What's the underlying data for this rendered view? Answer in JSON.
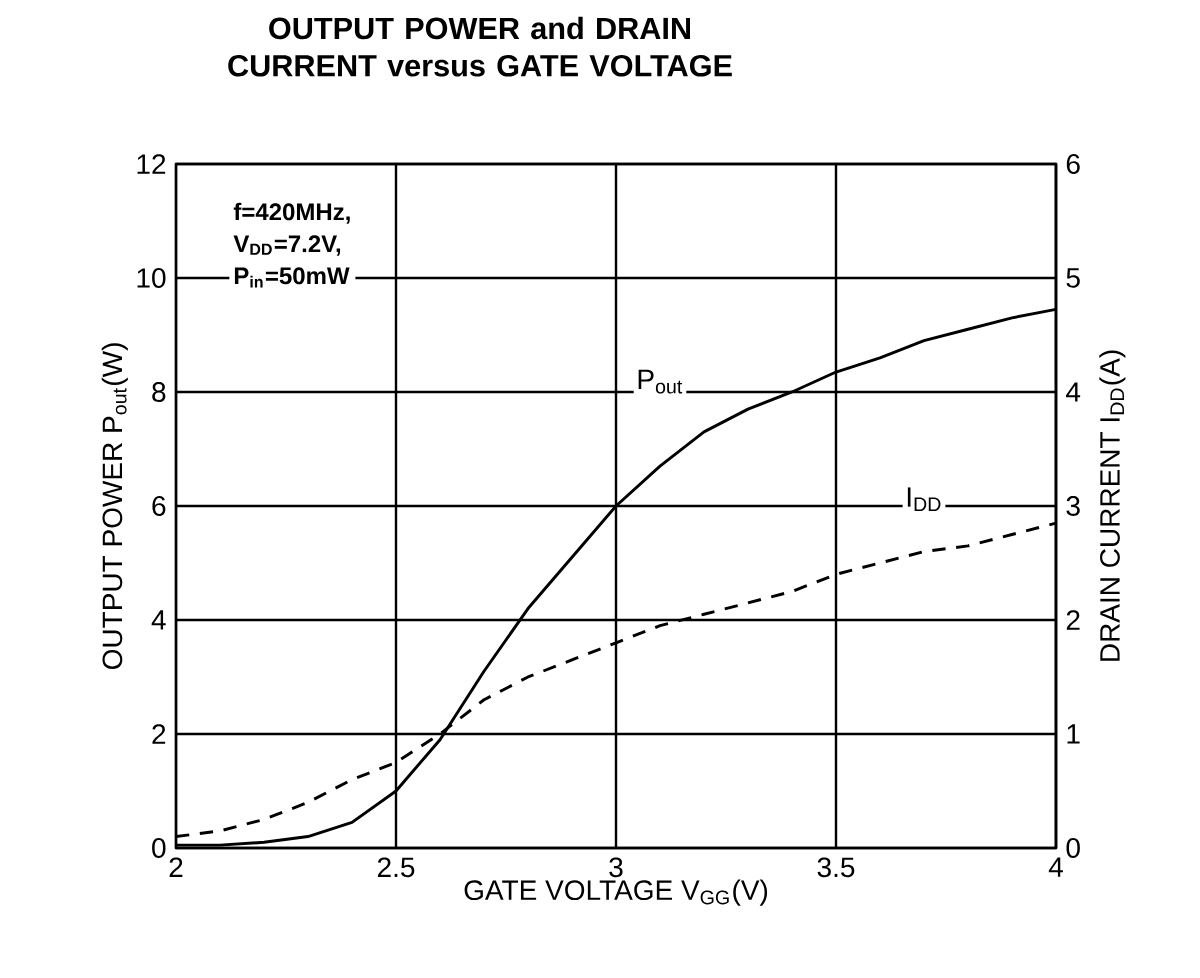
{
  "chart_data": {
    "type": "line",
    "title": "OUTPUT POWER and DRAIN CURRENT versus GATE VOLTAGE",
    "xlabel": "GATE VOLTAGE V$_{GG}$(V)",
    "ylabel": "OUTPUT POWER P$_{out}$(W)",
    "y2label": "DRAIN CURRENT I$_{DD}$(A)",
    "annotations": [
      "f=420MHz,",
      "V$_{DD}$=7.2V,",
      "P$_{in}$=50mW"
    ],
    "x": [
      2.0,
      2.1,
      2.2,
      2.3,
      2.4,
      2.5,
      2.6,
      2.7,
      2.8,
      2.9,
      3.0,
      3.1,
      3.2,
      3.3,
      3.4,
      3.5,
      3.6,
      3.7,
      3.8,
      3.9,
      4.0
    ],
    "series": [
      {
        "name": "P$_{out}$",
        "color": "#000000",
        "line_style": "solid",
        "values": [
          0.05,
          0.05,
          0.1,
          0.2,
          0.45,
          1.0,
          1.9,
          3.1,
          4.2,
          5.1,
          6.0,
          6.7,
          7.3,
          7.7,
          8.0,
          8.35,
          8.6,
          8.9,
          9.1,
          9.3,
          9.45
        ]
      },
      {
        "name": "I$_{DD}$",
        "color": "#000000",
        "line_style": "dashed",
        "axis": "y2",
        "values": [
          0.1,
          0.15,
          0.25,
          0.4,
          0.6,
          0.75,
          1.0,
          1.3,
          1.5,
          1.65,
          1.8,
          1.95,
          2.05,
          2.15,
          2.25,
          2.4,
          2.5,
          2.6,
          2.65,
          2.75,
          2.85
        ]
      }
    ],
    "xlim": [
      2,
      4
    ],
    "xticks": [
      2,
      2.5,
      3,
      3.5,
      4
    ],
    "ylim": [
      0,
      12
    ],
    "yticks": [
      0,
      2,
      4,
      6,
      8,
      10,
      12
    ],
    "y2lim": [
      0,
      6
    ],
    "y2ticks": [
      0,
      1,
      2,
      3,
      4,
      5,
      6
    ],
    "grid": true,
    "marker": "none"
  }
}
